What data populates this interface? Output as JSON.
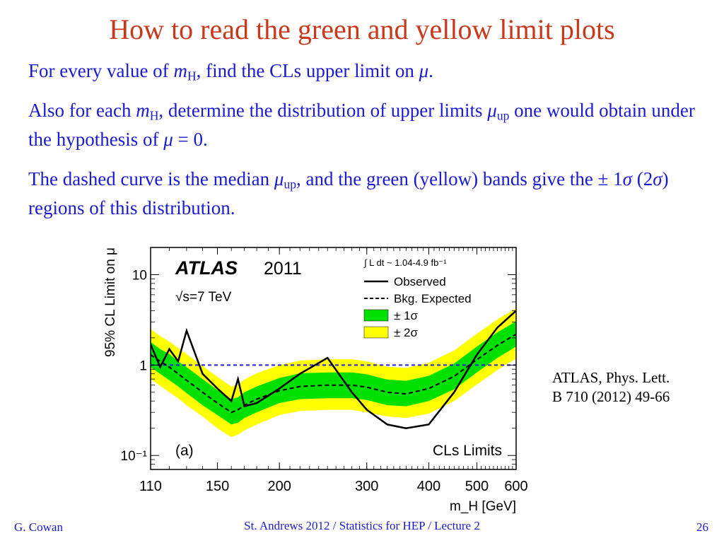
{
  "slide": {
    "title": "How to read the green and yellow limit plots",
    "p1": [
      {
        "t": "For every value of "
      },
      {
        "t": "m",
        "i": true
      },
      {
        "t": "H",
        "sub": true
      },
      {
        "t": ", find the CLs upper limit on "
      },
      {
        "t": "μ",
        "i": true
      },
      {
        "t": "."
      }
    ],
    "p2": [
      {
        "t": "Also for each "
      },
      {
        "t": "m",
        "i": true
      },
      {
        "t": "H",
        "sub": true
      },
      {
        "t": ", determine the distribution of upper limits "
      },
      {
        "t": "μ",
        "i": true
      },
      {
        "t": "up",
        "sub": true
      },
      {
        "t": " one would obtain under the hypothesis of "
      },
      {
        "t": "μ",
        "i": true
      },
      {
        "t": " = 0."
      }
    ],
    "p3": [
      {
        "t": "The dashed curve is the median "
      },
      {
        "t": "μ",
        "i": true
      },
      {
        "t": "up",
        "sub": true
      },
      {
        "t": ", and the green (yellow) bands give the ± 1"
      },
      {
        "t": "σ",
        "i": true
      },
      {
        "t": " (2"
      },
      {
        "t": "σ",
        "i": true
      },
      {
        "t": ") regions of this distribution."
      }
    ],
    "reference_line1": "ATLAS, Phys. Lett.",
    "reference_line2": "B 710 (2012) 49-66",
    "footer_left": "G. Cowan",
    "footer_center": "St. Andrews 2012 / Statistics for HEP / Lecture 2",
    "page_number": "26"
  },
  "colors": {
    "title": "#c8381a",
    "text": "#1a1ad2",
    "band_1sigma": "#00e000",
    "band_2sigma": "#ffff00",
    "reference_line": "#2222dd"
  },
  "chart_data": {
    "type": "line",
    "experiment": "ATLAS",
    "year": "2011",
    "energy": "√s=7 TeV",
    "luminosity": "∫ L dt ~ 1.04-4.9 fb⁻¹",
    "panel": "(a)",
    "method": "CLs Limits",
    "xlabel": "m_H [GeV]",
    "ylabel": "95% CL Limit on μ",
    "xscale": "log",
    "yscale": "log",
    "xlim": [
      110,
      600
    ],
    "ylim": [
      0.07,
      20
    ],
    "x_ticks": [
      110,
      150,
      200,
      300,
      400,
      500,
      600
    ],
    "x_tick_labels": [
      "110",
      "150",
      "200",
      "300",
      "400",
      "500",
      "600"
    ],
    "y_ticks": [
      0.1,
      1,
      10
    ],
    "y_tick_labels": [
      "10⁻¹",
      "1",
      "10"
    ],
    "legend": [
      "Observed",
      "Bkg. Expected",
      "± 1σ",
      "± 2σ"
    ],
    "legend_position": "top-right",
    "reference_line_y": 1,
    "x": [
      110,
      115,
      120,
      125,
      130,
      140,
      150,
      160,
      165,
      170,
      180,
      200,
      220,
      250,
      280,
      300,
      330,
      360,
      400,
      450,
      500,
      550,
      600
    ],
    "observed": [
      1.7,
      0.95,
      1.5,
      1.1,
      2.4,
      0.8,
      0.55,
      0.4,
      0.7,
      0.35,
      0.38,
      0.55,
      0.8,
      1.2,
      0.5,
      0.32,
      0.22,
      0.2,
      0.22,
      0.5,
      1.3,
      2.6,
      4.0
    ],
    "expected": [
      1.3,
      1.1,
      0.95,
      0.8,
      0.68,
      0.5,
      0.38,
      0.3,
      0.32,
      0.36,
      0.42,
      0.52,
      0.58,
      0.6,
      0.6,
      0.57,
      0.5,
      0.48,
      0.55,
      0.75,
      1.15,
      1.65,
      2.2
    ],
    "band_1sigma_low": [
      0.95,
      0.8,
      0.68,
      0.58,
      0.49,
      0.36,
      0.28,
      0.22,
      0.23,
      0.26,
      0.3,
      0.38,
      0.42,
      0.43,
      0.43,
      0.41,
      0.36,
      0.35,
      0.4,
      0.54,
      0.83,
      1.2,
      1.6
    ],
    "band_1sigma_high": [
      1.8,
      1.5,
      1.32,
      1.1,
      0.95,
      0.7,
      0.53,
      0.42,
      0.44,
      0.5,
      0.58,
      0.72,
      0.81,
      0.83,
      0.83,
      0.79,
      0.69,
      0.67,
      0.76,
      1.04,
      1.6,
      2.3,
      3.05
    ],
    "band_2sigma_low": [
      0.7,
      0.59,
      0.5,
      0.43,
      0.36,
      0.27,
      0.2,
      0.16,
      0.17,
      0.19,
      0.22,
      0.28,
      0.31,
      0.32,
      0.32,
      0.3,
      0.27,
      0.26,
      0.29,
      0.4,
      0.61,
      0.88,
      1.18
    ],
    "band_2sigma_high": [
      2.5,
      2.1,
      1.82,
      1.55,
      1.32,
      0.98,
      0.74,
      0.58,
      0.61,
      0.69,
      0.81,
      1.0,
      1.12,
      1.16,
      1.16,
      1.1,
      0.96,
      0.93,
      1.06,
      1.45,
      2.22,
      3.2,
      4.25
    ]
  }
}
